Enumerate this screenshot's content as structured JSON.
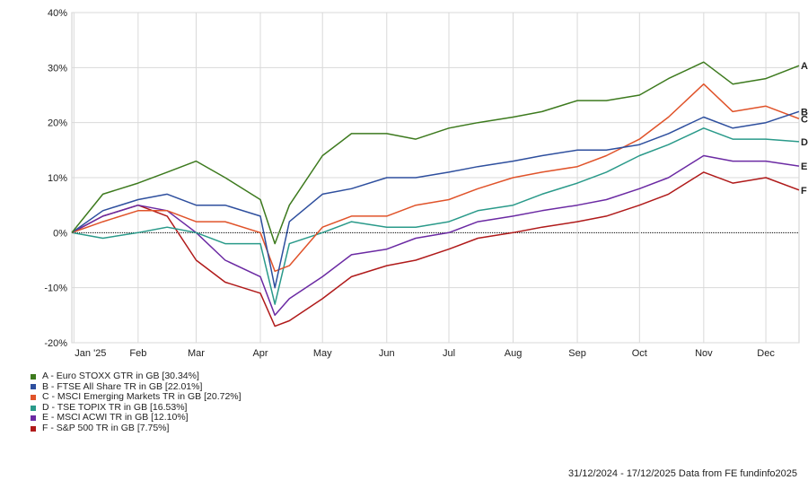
{
  "chart_data": {
    "type": "line",
    "ylim": [
      -20,
      40
    ],
    "yticks": [
      "40%",
      "30%",
      "20%",
      "10%",
      "0%",
      "-10%",
      "-20%"
    ],
    "ytick_values": [
      40,
      30,
      20,
      10,
      0,
      -10,
      -20
    ],
    "xticks": [
      "Jan '25",
      "Feb",
      "Mar",
      "Apr",
      "May",
      "Jun",
      "Jul",
      "Aug",
      "Sep",
      "Oct",
      "Nov",
      "Dec"
    ],
    "xtick_dates": [
      "2025-01-01",
      "2025-02-01",
      "2025-03-01",
      "2025-04-01",
      "2025-05-01",
      "2025-06-01",
      "2025-07-01",
      "2025-08-01",
      "2025-09-01",
      "2025-10-01",
      "2025-11-01",
      "2025-12-01"
    ],
    "xlim": [
      "2024-12-31",
      "2025-12-17"
    ],
    "grid": true,
    "x": [
      "2024-12-31",
      "2025-01-15",
      "2025-02-01",
      "2025-02-15",
      "2025-03-01",
      "2025-03-15",
      "2025-04-01",
      "2025-04-08",
      "2025-04-15",
      "2025-05-01",
      "2025-05-15",
      "2025-06-01",
      "2025-06-15",
      "2025-07-01",
      "2025-07-15",
      "2025-08-01",
      "2025-08-15",
      "2025-09-01",
      "2025-09-15",
      "2025-10-01",
      "2025-10-15",
      "2025-11-01",
      "2025-11-15",
      "2025-12-01",
      "2025-12-17"
    ],
    "series": [
      {
        "label": "A",
        "name": "A - Euro STOXX GTR in GB [30.34%]",
        "color": "#3d7a1e",
        "values": [
          0,
          7,
          9,
          11,
          13,
          10,
          6,
          -2,
          5,
          14,
          18,
          18,
          17,
          19,
          20,
          21,
          22,
          24,
          24,
          25,
          28,
          31,
          27,
          28,
          30.34
        ]
      },
      {
        "label": "B",
        "name": "B - FTSE All Share TR in GB [22.01%]",
        "color": "#2e4f9e",
        "values": [
          0,
          4,
          6,
          7,
          5,
          5,
          3,
          -10,
          2,
          7,
          8,
          10,
          10,
          11,
          12,
          13,
          14,
          15,
          15,
          16,
          18,
          21,
          19,
          20,
          22.01
        ]
      },
      {
        "label": "C",
        "name": "C - MSCI Emerging Markets TR in GB [20.72%]",
        "color": "#e0532a",
        "values": [
          0,
          2,
          4,
          4,
          2,
          2,
          0,
          -7,
          -6,
          1,
          3,
          3,
          5,
          6,
          8,
          10,
          11,
          12,
          14,
          17,
          21,
          27,
          22,
          23,
          20.72
        ]
      },
      {
        "label": "D",
        "name": "D - TSE TOPIX TR in GB [16.53%]",
        "color": "#2a9a8a",
        "values": [
          0,
          -1,
          0,
          1,
          0,
          -2,
          -2,
          -13,
          -2,
          0,
          2,
          1,
          1,
          2,
          4,
          5,
          7,
          9,
          11,
          14,
          16,
          19,
          17,
          17,
          16.53
        ]
      },
      {
        "label": "E",
        "name": "E - MSCI ACWI TR in GB [12.10%]",
        "color": "#6b2aa3",
        "values": [
          0,
          3,
          5,
          4,
          0,
          -5,
          -8,
          -15,
          -12,
          -8,
          -4,
          -3,
          -1,
          0,
          2,
          3,
          4,
          5,
          6,
          8,
          10,
          14,
          13,
          13,
          12.1
        ]
      },
      {
        "label": "F",
        "name": "F - S&P 500 TR in GB [7.75%]",
        "color": "#b01a1a",
        "values": [
          0,
          3,
          5,
          3,
          -5,
          -9,
          -11,
          -17,
          -16,
          -12,
          -8,
          -6,
          -5,
          -3,
          -1,
          0,
          1,
          2,
          3,
          5,
          7,
          11,
          9,
          10,
          7.75
        ]
      }
    ]
  },
  "footer": "31/12/2024 - 17/12/2025 Data from FE fundinfo2025"
}
